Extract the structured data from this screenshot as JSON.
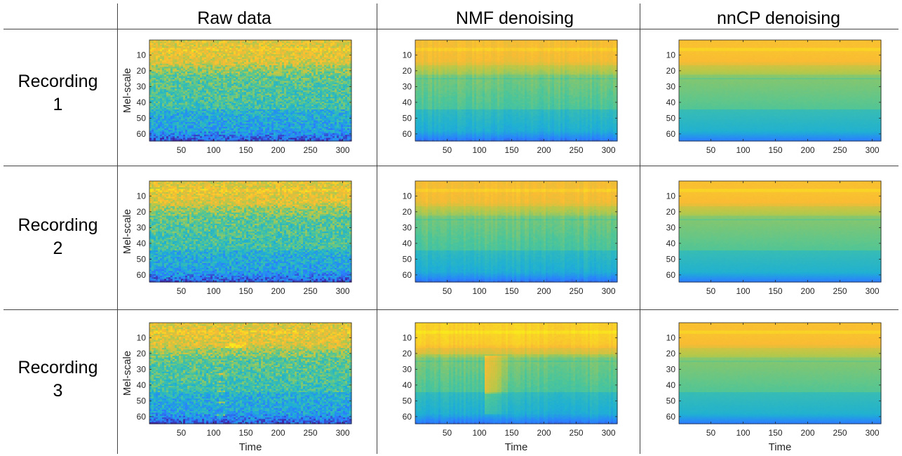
{
  "figure": {
    "column_titles": [
      "Raw data",
      "NMF denoising",
      "nnCP denoising"
    ],
    "row_labels": [
      {
        "line1": "Recording",
        "line2": "1"
      },
      {
        "line1": "Recording",
        "line2": "2"
      },
      {
        "line1": "Recording",
        "line2": "3"
      }
    ]
  },
  "colormap": [
    "#3e26a8",
    "#2a7fff",
    "#1fb0d3",
    "#4bc59a",
    "#b5c84a",
    "#f9bb33",
    "#f9e81c"
  ],
  "chart_data": [
    {
      "type": "heatmap",
      "row": 1,
      "col": 1,
      "variant": "raw",
      "xlabel": "",
      "ylabel": "Mel-scale",
      "xlim": [
        1,
        313
      ],
      "ylim": [
        64,
        1
      ],
      "x_ticks": [
        50,
        100,
        150,
        200,
        250,
        300
      ],
      "y_ticks": [
        10,
        20,
        30,
        40,
        50,
        60
      ]
    },
    {
      "type": "heatmap",
      "row": 1,
      "col": 2,
      "variant": "nmf",
      "xlabel": "",
      "ylabel": "",
      "xlim": [
        1,
        313
      ],
      "ylim": [
        64,
        1
      ],
      "x_ticks": [
        50,
        100,
        150,
        200,
        250,
        300
      ],
      "y_ticks": [
        10,
        20,
        30,
        40,
        50,
        60
      ]
    },
    {
      "type": "heatmap",
      "row": 1,
      "col": 3,
      "variant": "nncp",
      "xlabel": "",
      "ylabel": "",
      "xlim": [
        1,
        313
      ],
      "ylim": [
        64,
        1
      ],
      "x_ticks": [
        50,
        100,
        150,
        200,
        250,
        300
      ],
      "y_ticks": [
        10,
        20,
        30,
        40,
        50,
        60
      ]
    },
    {
      "type": "heatmap",
      "row": 2,
      "col": 1,
      "variant": "raw",
      "xlabel": "",
      "ylabel": "Mel-scale",
      "xlim": [
        1,
        313
      ],
      "ylim": [
        64,
        1
      ],
      "x_ticks": [
        50,
        100,
        150,
        200,
        250,
        300
      ],
      "y_ticks": [
        10,
        20,
        30,
        40,
        50,
        60
      ]
    },
    {
      "type": "heatmap",
      "row": 2,
      "col": 2,
      "variant": "nmf",
      "xlabel": "",
      "ylabel": "",
      "xlim": [
        1,
        313
      ],
      "ylim": [
        64,
        1
      ],
      "x_ticks": [
        50,
        100,
        150,
        200,
        250,
        300
      ],
      "y_ticks": [
        10,
        20,
        30,
        40,
        50,
        60
      ]
    },
    {
      "type": "heatmap",
      "row": 2,
      "col": 3,
      "variant": "nncp",
      "xlabel": "",
      "ylabel": "",
      "xlim": [
        1,
        313
      ],
      "ylim": [
        64,
        1
      ],
      "x_ticks": [
        50,
        100,
        150,
        200,
        250,
        300
      ],
      "y_ticks": [
        10,
        20,
        30,
        40,
        50,
        60
      ]
    },
    {
      "type": "heatmap",
      "row": 3,
      "col": 1,
      "variant": "raw_event",
      "xlabel": "Time",
      "ylabel": "Mel-scale",
      "xlim": [
        1,
        313
      ],
      "ylim": [
        64,
        1
      ],
      "x_ticks": [
        50,
        100,
        150,
        200,
        250,
        300
      ],
      "y_ticks": [
        10,
        20,
        30,
        40,
        50,
        60
      ]
    },
    {
      "type": "heatmap",
      "row": 3,
      "col": 2,
      "variant": "nmf_event",
      "xlabel": "Time",
      "ylabel": "",
      "xlim": [
        1,
        313
      ],
      "ylim": [
        64,
        1
      ],
      "x_ticks": [
        50,
        100,
        150,
        200,
        250,
        300
      ],
      "y_ticks": [
        10,
        20,
        30,
        40,
        50,
        60
      ]
    },
    {
      "type": "heatmap",
      "row": 3,
      "col": 3,
      "variant": "nncp",
      "xlabel": "Time",
      "ylabel": "",
      "xlim": [
        1,
        313
      ],
      "ylim": [
        64,
        1
      ],
      "x_ticks": [
        50,
        100,
        150,
        200,
        250,
        300
      ],
      "y_ticks": [
        10,
        20,
        30,
        40,
        50,
        60
      ]
    }
  ]
}
